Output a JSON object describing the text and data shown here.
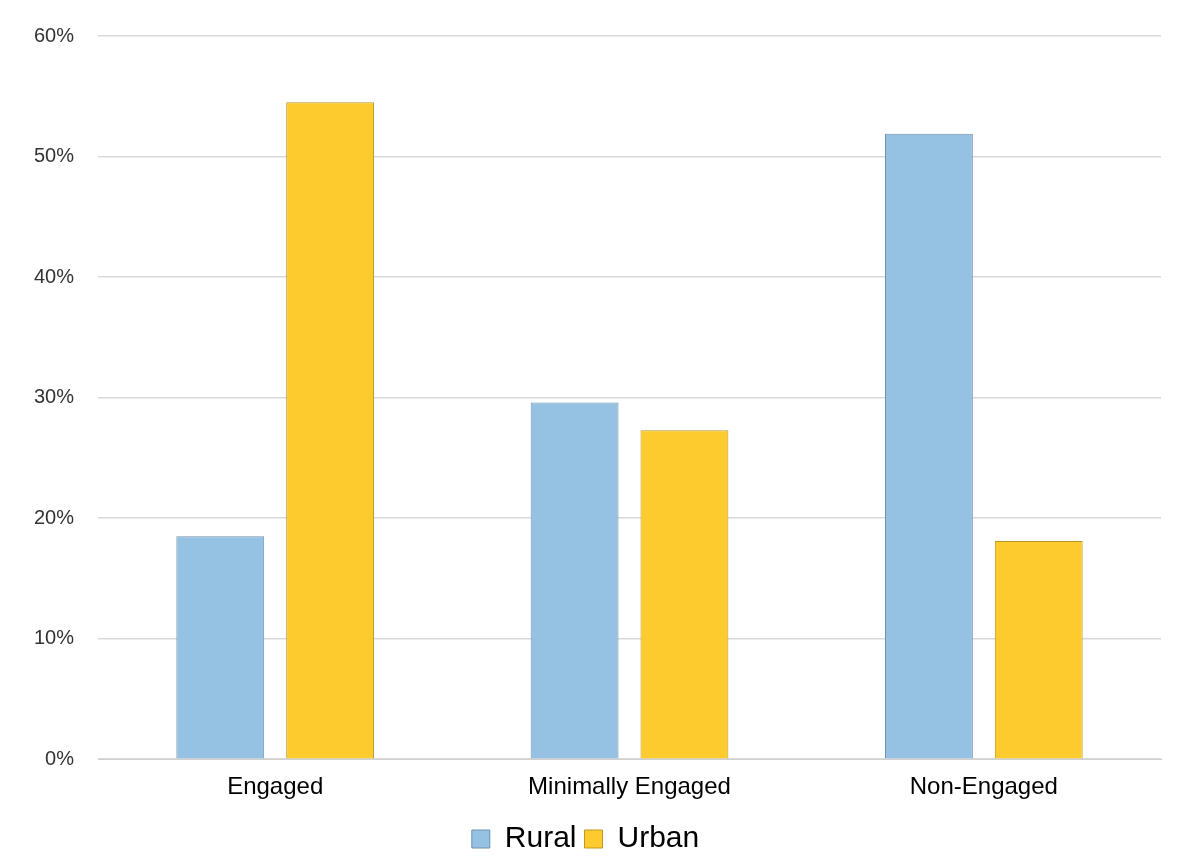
{
  "chart_data": {
    "type": "bar",
    "categories": [
      "Engaged",
      "Minimally Engaged",
      "Non-Engaged"
    ],
    "series": [
      {
        "name": "Rural",
        "color": "#95c1e2",
        "values": [
          18.5,
          29.6,
          51.9
        ]
      },
      {
        "name": "Urban",
        "color": "#fdcb2e",
        "values": [
          54.5,
          27.3,
          18.1
        ]
      }
    ],
    "ylim": [
      0,
      60
    ],
    "yticks": [
      {
        "value": 0,
        "label": "0%"
      },
      {
        "value": 10,
        "label": "10%"
      },
      {
        "value": 20,
        "label": "20%"
      },
      {
        "value": 30,
        "label": "30%"
      },
      {
        "value": 40,
        "label": "40%"
      },
      {
        "value": 50,
        "label": "50%"
      },
      {
        "value": 60,
        "label": "60%"
      }
    ],
    "grid": "y",
    "legend": "bottom"
  }
}
